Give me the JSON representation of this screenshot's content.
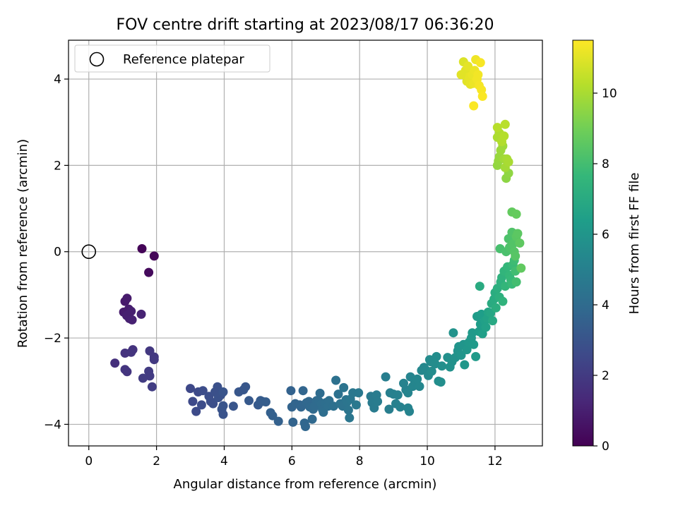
{
  "chart_data": {
    "type": "scatter",
    "title": "FOV centre drift starting at 2023/08/17 06:36:20",
    "xlabel": "Angular distance from reference (arcmin)",
    "ylabel": "Rotation from reference (arcmin)",
    "xlim": [
      -0.6,
      13.4
    ],
    "ylim": [
      -4.5,
      4.9
    ],
    "xticks": [
      0,
      2,
      4,
      6,
      8,
      10,
      12
    ],
    "xtick_labels": [
      "0",
      "2",
      "4",
      "6",
      "8",
      "10",
      "12"
    ],
    "yticks": [
      -4,
      -2,
      0,
      2,
      4
    ],
    "ytick_labels": [
      "−4",
      "−2",
      "0",
      "2",
      "4"
    ],
    "grid": true,
    "legend": {
      "position": "top-left",
      "entries": [
        {
          "label": "Reference platepar",
          "marker": "open-circle"
        }
      ]
    },
    "reference_point": {
      "x": 0,
      "y": 0
    },
    "colorbar": {
      "label": "Hours from first FF file",
      "colormap": "viridis",
      "range": [
        0,
        11.5
      ],
      "ticks": [
        0,
        2,
        4,
        6,
        8,
        10
      ],
      "tick_labels": [
        "0",
        "2",
        "4",
        "6",
        "8",
        "10"
      ]
    },
    "colormap_stops": [
      "#440154",
      "#482878",
      "#3e4989",
      "#31688e",
      "#26828e",
      "#1f9e89",
      "#35b779",
      "#6ece58",
      "#b5de2b",
      "#fde725"
    ],
    "series": [
      {
        "points": [
          [
            1.57,
            0.07,
            0.1
          ],
          [
            1.93,
            -0.1,
            0.15
          ],
          [
            1.77,
            -0.48,
            0.3
          ],
          [
            1.07,
            -1.15,
            0.8
          ],
          [
            1.13,
            -1.08,
            0.85
          ],
          [
            1.18,
            -1.33,
            0.9
          ],
          [
            1.03,
            -1.4,
            0.9
          ],
          [
            1.12,
            -1.48,
            1.0
          ],
          [
            1.2,
            -1.55,
            1.0
          ],
          [
            1.28,
            -1.58,
            1.05
          ],
          [
            1.25,
            -1.38,
            1.0
          ],
          [
            1.55,
            -1.45,
            1.1
          ],
          [
            0.77,
            -2.58,
            1.6
          ],
          [
            1.07,
            -2.35,
            1.7
          ],
          [
            1.3,
            -2.27,
            1.7
          ],
          [
            1.25,
            -2.33,
            1.75
          ],
          [
            1.07,
            -2.73,
            1.8
          ],
          [
            1.13,
            -2.78,
            1.8
          ],
          [
            1.8,
            -2.3,
            1.9
          ],
          [
            1.93,
            -2.44,
            1.9
          ],
          [
            1.93,
            -2.5,
            1.95
          ],
          [
            1.77,
            -2.77,
            2.0
          ],
          [
            1.8,
            -2.88,
            2.0
          ],
          [
            1.6,
            -2.93,
            2.05
          ],
          [
            1.87,
            -3.13,
            2.1
          ],
          [
            3.0,
            -3.17,
            2.5
          ],
          [
            3.07,
            -3.47,
            2.6
          ],
          [
            3.23,
            -3.25,
            2.6
          ],
          [
            3.17,
            -3.7,
            2.65
          ],
          [
            3.37,
            -3.22,
            2.7
          ],
          [
            3.33,
            -3.55,
            2.7
          ],
          [
            3.55,
            -3.35,
            2.75
          ],
          [
            3.6,
            -3.47,
            2.8
          ],
          [
            3.67,
            -3.52,
            2.8
          ],
          [
            3.73,
            -3.25,
            2.85
          ],
          [
            3.8,
            -3.13,
            2.85
          ],
          [
            3.83,
            -3.38,
            2.9
          ],
          [
            3.9,
            -3.32,
            2.9
          ],
          [
            3.93,
            -3.65,
            2.95
          ],
          [
            3.97,
            -3.77,
            2.95
          ],
          [
            3.97,
            -3.57,
            3.0
          ],
          [
            3.97,
            -3.25,
            3.0
          ],
          [
            4.27,
            -3.58,
            3.05
          ],
          [
            4.43,
            -3.25,
            3.1
          ],
          [
            4.57,
            -3.2,
            3.1
          ],
          [
            4.63,
            -3.13,
            3.15
          ],
          [
            4.73,
            -3.45,
            3.2
          ],
          [
            5.0,
            -3.55,
            3.25
          ],
          [
            5.07,
            -3.45,
            3.3
          ],
          [
            5.13,
            -3.47,
            3.35
          ],
          [
            5.23,
            -3.48,
            3.4
          ],
          [
            5.37,
            -3.73,
            3.5
          ],
          [
            5.43,
            -3.8,
            3.5
          ],
          [
            5.6,
            -3.93,
            3.55
          ],
          [
            5.97,
            -3.22,
            3.6
          ],
          [
            6.0,
            -3.6,
            3.65
          ],
          [
            6.03,
            -3.95,
            3.65
          ],
          [
            6.1,
            -3.52,
            3.7
          ],
          [
            6.23,
            -3.55,
            3.7
          ],
          [
            6.27,
            -3.6,
            3.75
          ],
          [
            6.33,
            -3.22,
            3.75
          ],
          [
            6.37,
            -3.97,
            3.8
          ],
          [
            6.4,
            -4.05,
            3.8
          ],
          [
            6.43,
            -3.5,
            3.85
          ],
          [
            6.5,
            -3.47,
            3.85
          ],
          [
            6.53,
            -3.6,
            3.9
          ],
          [
            6.6,
            -3.88,
            3.9
          ],
          [
            6.63,
            -3.65,
            3.95
          ],
          [
            6.67,
            -3.58,
            4.0
          ],
          [
            6.73,
            -3.45,
            4.0
          ],
          [
            6.8,
            -3.47,
            4.05
          ],
          [
            6.83,
            -3.28,
            4.05
          ],
          [
            6.87,
            -3.53,
            4.1
          ],
          [
            6.9,
            -3.65,
            4.1
          ],
          [
            6.93,
            -3.72,
            4.15
          ],
          [
            7.0,
            -3.5,
            4.15
          ],
          [
            7.07,
            -3.58,
            4.2
          ],
          [
            7.1,
            -3.45,
            4.2
          ],
          [
            7.23,
            -3.58,
            4.25
          ],
          [
            7.3,
            -2.98,
            4.3
          ],
          [
            7.37,
            -3.3,
            4.3
          ],
          [
            7.43,
            -3.52,
            4.35
          ],
          [
            7.5,
            -3.58,
            4.35
          ],
          [
            7.53,
            -3.15,
            4.4
          ],
          [
            7.6,
            -3.43,
            4.4
          ],
          [
            7.63,
            -3.48,
            4.45
          ],
          [
            7.67,
            -3.67,
            4.45
          ],
          [
            7.7,
            -3.85,
            4.5
          ],
          [
            7.73,
            -3.42,
            4.5
          ],
          [
            7.8,
            -3.27,
            4.55
          ],
          [
            7.9,
            -3.55,
            4.6
          ],
          [
            7.97,
            -3.27,
            4.6
          ],
          [
            8.33,
            -3.35,
            4.7
          ],
          [
            8.37,
            -3.5,
            4.75
          ],
          [
            8.43,
            -3.62,
            4.75
          ],
          [
            8.5,
            -3.32,
            4.8
          ],
          [
            8.53,
            -3.47,
            4.8
          ],
          [
            8.77,
            -2.9,
            4.9
          ],
          [
            8.87,
            -3.65,
            4.9
          ],
          [
            8.9,
            -3.27,
            4.95
          ],
          [
            9.0,
            -3.3,
            5.0
          ],
          [
            9.07,
            -3.52,
            5.0
          ],
          [
            9.13,
            -3.32,
            5.05
          ],
          [
            9.2,
            -3.6,
            5.05
          ],
          [
            9.3,
            -3.05,
            5.1
          ],
          [
            9.37,
            -3.2,
            5.1
          ],
          [
            9.43,
            -3.62,
            5.15
          ],
          [
            9.47,
            -3.7,
            5.15
          ],
          [
            9.43,
            -3.27,
            5.2
          ],
          [
            9.5,
            -2.9,
            5.2
          ],
          [
            9.57,
            -3.12,
            5.25
          ],
          [
            9.63,
            -3.0,
            5.25
          ],
          [
            9.7,
            -2.95,
            5.3
          ],
          [
            9.77,
            -3.12,
            5.3
          ],
          [
            9.83,
            -2.75,
            5.35
          ],
          [
            9.9,
            -2.68,
            5.35
          ],
          [
            9.97,
            -2.75,
            5.4
          ],
          [
            10.03,
            -2.87,
            5.45
          ],
          [
            10.07,
            -2.5,
            5.5
          ],
          [
            10.1,
            -2.55,
            5.5
          ],
          [
            10.13,
            -2.77,
            5.55
          ],
          [
            10.23,
            -2.6,
            5.55
          ],
          [
            10.27,
            -2.43,
            5.6
          ],
          [
            10.33,
            -3.0,
            5.6
          ],
          [
            10.4,
            -3.02,
            5.65
          ],
          [
            10.43,
            -2.65,
            5.7
          ],
          [
            10.6,
            -2.45,
            5.75
          ],
          [
            10.67,
            -2.67,
            5.8
          ],
          [
            10.73,
            -2.55,
            5.8
          ],
          [
            10.77,
            -1.88,
            5.85
          ],
          [
            10.83,
            -2.45,
            5.85
          ],
          [
            10.9,
            -2.3,
            5.9
          ],
          [
            10.93,
            -2.2,
            5.95
          ],
          [
            11.0,
            -2.4,
            6.0
          ],
          [
            11.07,
            -2.15,
            6.0
          ],
          [
            11.1,
            -2.62,
            6.05
          ],
          [
            11.17,
            -2.27,
            6.05
          ],
          [
            11.23,
            -2.1,
            6.1
          ],
          [
            11.3,
            -2.0,
            6.1
          ],
          [
            11.33,
            -1.88,
            6.15
          ],
          [
            11.37,
            -2.15,
            6.2
          ],
          [
            11.43,
            -2.43,
            6.2
          ],
          [
            11.47,
            -1.5,
            6.3
          ],
          [
            11.53,
            -1.85,
            6.3
          ],
          [
            11.57,
            -1.68,
            6.35
          ],
          [
            11.6,
            -1.45,
            6.4
          ],
          [
            11.63,
            -1.9,
            6.45
          ],
          [
            11.7,
            -1.6,
            6.5
          ],
          [
            11.73,
            -1.75,
            6.55
          ],
          [
            11.77,
            -1.55,
            6.6
          ],
          [
            11.8,
            -1.4,
            6.7
          ],
          [
            11.87,
            -1.42,
            6.8
          ],
          [
            11.93,
            -1.6,
            6.9
          ],
          [
            11.55,
            -0.8,
            7.0
          ],
          [
            11.9,
            -1.2,
            7.0
          ],
          [
            11.97,
            -1.1,
            7.05
          ],
          [
            12.0,
            -0.95,
            7.1
          ],
          [
            12.03,
            -1.3,
            7.15
          ],
          [
            12.07,
            -0.85,
            7.2
          ],
          [
            12.13,
            -1.05,
            7.25
          ],
          [
            12.17,
            -0.7,
            7.3
          ],
          [
            12.2,
            -0.6,
            7.35
          ],
          [
            12.23,
            -1.15,
            7.4
          ],
          [
            12.27,
            -0.45,
            7.5
          ],
          [
            12.3,
            -0.8,
            7.55
          ],
          [
            12.37,
            -0.35,
            7.6
          ],
          [
            12.43,
            -0.55,
            7.65
          ],
          [
            12.47,
            -0.65,
            7.7
          ],
          [
            12.5,
            -0.75,
            7.75
          ],
          [
            12.53,
            -0.3,
            7.8
          ],
          [
            12.57,
            -0.2,
            7.9
          ],
          [
            12.6,
            -0.45,
            7.95
          ],
          [
            12.63,
            -0.7,
            8.0
          ],
          [
            12.15,
            0.07,
            8.1
          ],
          [
            12.33,
            0.0,
            8.15
          ],
          [
            12.4,
            0.3,
            8.2
          ],
          [
            12.43,
            0.1,
            8.25
          ],
          [
            12.5,
            0.45,
            8.3
          ],
          [
            12.53,
            0.18,
            8.35
          ],
          [
            12.57,
            0.0,
            8.4
          ],
          [
            12.6,
            -0.1,
            8.45
          ],
          [
            12.63,
            0.35,
            8.5
          ],
          [
            12.67,
            0.42,
            8.55
          ],
          [
            12.73,
            0.2,
            8.6
          ],
          [
            12.77,
            -0.38,
            8.65
          ],
          [
            12.5,
            0.92,
            8.7
          ],
          [
            12.63,
            0.87,
            8.75
          ],
          [
            12.33,
            1.7,
            9.5
          ],
          [
            12.4,
            1.82,
            9.55
          ],
          [
            12.07,
            2.0,
            9.6
          ],
          [
            12.1,
            2.1,
            9.65
          ],
          [
            12.13,
            2.2,
            9.7
          ],
          [
            12.17,
            2.35,
            9.75
          ],
          [
            12.23,
            2.45,
            9.8
          ],
          [
            12.27,
            2.15,
            9.85
          ],
          [
            12.3,
            1.95,
            9.9
          ],
          [
            12.35,
            2.15,
            9.95
          ],
          [
            12.4,
            2.08,
            10.0
          ],
          [
            12.07,
            2.65,
            10.05
          ],
          [
            12.13,
            2.75,
            10.1
          ],
          [
            12.2,
            2.55,
            10.15
          ],
          [
            12.27,
            2.68,
            10.2
          ],
          [
            12.07,
            2.88,
            10.25
          ],
          [
            12.3,
            2.95,
            10.3
          ],
          [
            11.07,
            4.4,
            10.9
          ],
          [
            11.1,
            4.1,
            10.95
          ],
          [
            11.13,
            4.2,
            11.0
          ],
          [
            11.17,
            3.95,
            11.0
          ],
          [
            11.2,
            4.3,
            11.05
          ],
          [
            11.23,
            4.05,
            11.1
          ],
          [
            11.27,
            3.88,
            11.1
          ],
          [
            11.33,
            4.1,
            11.15
          ],
          [
            11.37,
            3.9,
            11.2
          ],
          [
            11.4,
            4.2,
            11.2
          ],
          [
            11.43,
            4.45,
            11.25
          ],
          [
            11.47,
            4.0,
            11.3
          ],
          [
            11.5,
            4.1,
            11.3
          ],
          [
            11.53,
            3.85,
            11.35
          ],
          [
            11.57,
            4.38,
            11.4
          ],
          [
            11.6,
            3.75,
            11.4
          ],
          [
            11.63,
            3.6,
            11.45
          ],
          [
            11.37,
            3.38,
            11.45
          ],
          [
            11.0,
            4.1,
            11.0
          ]
        ]
      }
    ]
  }
}
